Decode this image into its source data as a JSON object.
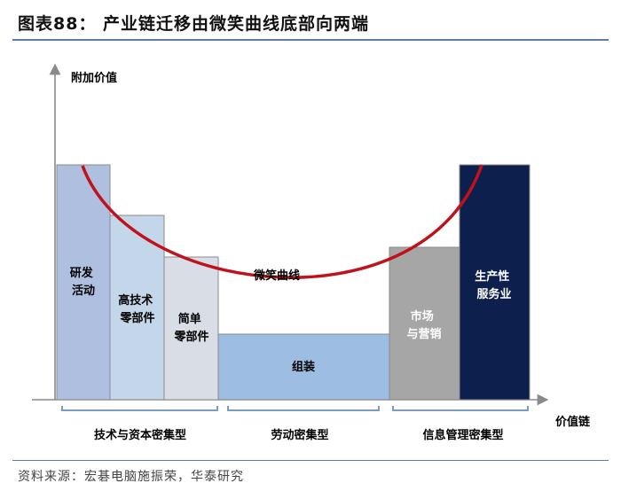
{
  "header": {
    "title": "图表88：  产业链迁移由微笑曲线底部向两端"
  },
  "axes": {
    "y_label": "附加价值",
    "x_label": "价值链"
  },
  "bars": [
    {
      "id": "rd",
      "lines": [
        "研发",
        "活动"
      ],
      "fill": "#aebfe0",
      "text_color": "#000000"
    },
    {
      "id": "hightech",
      "lines": [
        "高技术",
        "零部件"
      ],
      "fill": "#c4d6ea",
      "text_color": "#000000"
    },
    {
      "id": "simple",
      "lines": [
        "简单",
        "零部件"
      ],
      "fill": "#d8dde6",
      "text_color": "#000000"
    },
    {
      "id": "assembly",
      "lines": [
        "组装"
      ],
      "fill": "#9dbde2",
      "text_color": "#000000"
    },
    {
      "id": "market",
      "lines": [
        "市场",
        "与营销"
      ],
      "fill": "#a6a6a6",
      "text_color": "#ffffff"
    },
    {
      "id": "service",
      "lines": [
        "生产性",
        "服务业"
      ],
      "fill": "#0d1f4d",
      "text_color": "#ffffff"
    }
  ],
  "curve": {
    "label": "微笑曲线",
    "color": "#c0121b"
  },
  "groups": [
    {
      "id": "tech-capital",
      "label": "技术与资本密集型"
    },
    {
      "id": "labor",
      "label": "劳动密集型"
    },
    {
      "id": "info-mgmt",
      "label": "信息管理密集型"
    }
  ],
  "colors": {
    "axis": "#8a8a8a",
    "bracket": "#7a9cc6",
    "bar_border": "#8a8a8a"
  },
  "footer": {
    "source": "资料来源：宏碁电脑施振荣，华泰研究"
  }
}
